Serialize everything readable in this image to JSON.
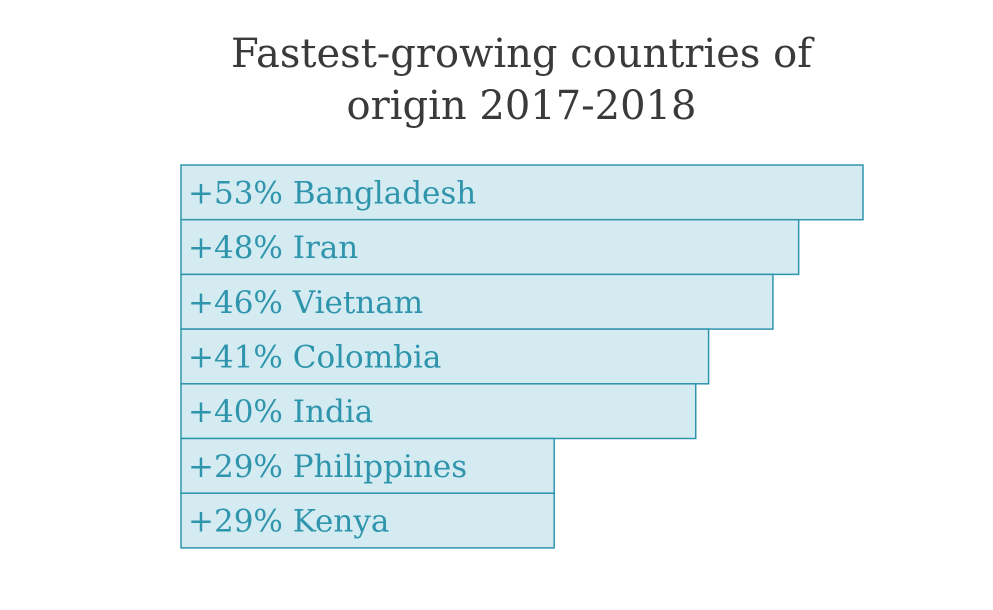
{
  "chart_data": {
    "type": "bar",
    "orientation": "horizontal",
    "title_lines": [
      "Fastest-growing countries of",
      "origin 2017-2018"
    ],
    "categories": [
      "Bangladesh",
      "Iran",
      "Vietnam",
      "Colombia",
      "India",
      "Philippines",
      "Kenya"
    ],
    "values": [
      53,
      48,
      46,
      41,
      40,
      29,
      29
    ],
    "labels": [
      "+53% Bangladesh",
      "+48% Iran",
      "+46% Vietnam",
      "+41% Colombia",
      "+40% India",
      "+29% Philippines",
      "+29% Kenya"
    ],
    "unit": "%",
    "xlabel": "",
    "ylabel": "",
    "grid": false,
    "legend": "none",
    "colors": {
      "bar_fill": "#d5ebf2",
      "bar_stroke": "#2f95ad",
      "label": "#2f95ad",
      "title": "#3a3a3a"
    }
  }
}
